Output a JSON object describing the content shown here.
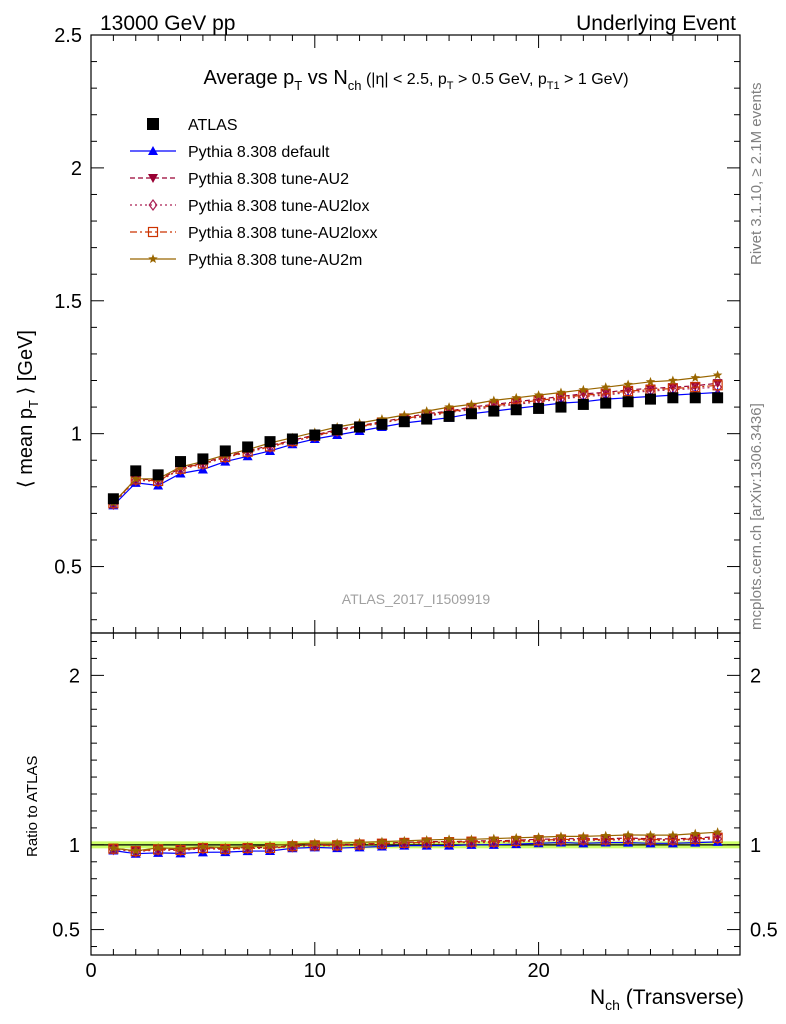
{
  "header": {
    "left": "13000 GeV pp",
    "right": "Underlying Event"
  },
  "side_labels": {
    "rivet": "Rivet 3.1.10, ≥ 2.1M events",
    "mcplots": "mcplots.cern.ch [arXiv:1306.3436]"
  },
  "chart_data": {
    "type": "scatter",
    "title": {
      "main": "Average p",
      "main_sub": "T",
      "vs": " vs N",
      "vs_sub": "ch",
      "cuts_a": " (|η| < 2.5, p",
      "cuts_a_sub": "T",
      "cuts_b": " > 0.5 GeV, p",
      "cuts_b_sub": "T1",
      "cuts_c": " > 1 GeV)"
    },
    "watermark": "ATLAS_2017_I1509919",
    "ylabel": {
      "open": "⟨ mean p",
      "sub": "T",
      "close": " ⟩ [GeV]"
    },
    "ratio_ylabel": "Ratio to ATLAS",
    "xlabel": {
      "main": "N",
      "sub": "ch",
      "rest": " (Transverse)"
    },
    "xlim": [
      0,
      29
    ],
    "ylim": [
      0.25,
      2.5
    ],
    "ratio_ylim": [
      0.35,
      2.25
    ],
    "x_ticks": [
      "0",
      "10",
      "20"
    ],
    "y_ticks": [
      "0.5",
      "1",
      "1.5",
      "2",
      "2.5"
    ],
    "ratio_ticks": [
      "0.5",
      "1",
      "2"
    ],
    "x": [
      1,
      2,
      3,
      4,
      5,
      6,
      7,
      8,
      9,
      10,
      11,
      12,
      13,
      14,
      15,
      16,
      17,
      18,
      19,
      20,
      21,
      22,
      23,
      24,
      25,
      26,
      27,
      28
    ],
    "legend_position": "top-left",
    "reference_band_color": "#ccff66",
    "series": [
      {
        "name": "ATLAS",
        "color": "#000000",
        "marker": "square",
        "line": "none",
        "values": [
          0.755,
          0.86,
          0.845,
          0.895,
          0.905,
          0.935,
          0.95,
          0.97,
          0.98,
          0.995,
          1.015,
          1.025,
          1.035,
          1.045,
          1.055,
          1.065,
          1.075,
          1.085,
          1.09,
          1.095,
          1.1,
          1.11,
          1.115,
          1.12,
          1.13,
          1.135,
          1.135,
          1.135
        ]
      },
      {
        "name": "Pythia 8.308 default",
        "color": "#0000ff",
        "marker": "triangle-up",
        "line": "solid",
        "values": [
          0.73,
          0.815,
          0.805,
          0.85,
          0.865,
          0.895,
          0.915,
          0.935,
          0.96,
          0.98,
          0.995,
          1.01,
          1.025,
          1.04,
          1.05,
          1.06,
          1.075,
          1.085,
          1.095,
          1.105,
          1.115,
          1.12,
          1.13,
          1.135,
          1.14,
          1.145,
          1.15,
          1.155
        ]
      },
      {
        "name": "Pythia 8.308 tune-AU2",
        "color": "#990033",
        "marker": "triangle-down",
        "line": "dashed",
        "values": [
          0.74,
          0.83,
          0.825,
          0.87,
          0.89,
          0.915,
          0.935,
          0.955,
          0.975,
          0.995,
          1.015,
          1.03,
          1.045,
          1.06,
          1.075,
          1.085,
          1.1,
          1.11,
          1.12,
          1.13,
          1.14,
          1.15,
          1.155,
          1.165,
          1.17,
          1.175,
          1.18,
          1.19
        ]
      },
      {
        "name": "Pythia 8.308 tune-AU2lox",
        "color": "#aa2255",
        "marker": "diamond-open",
        "line": "dotted",
        "values": [
          0.735,
          0.825,
          0.82,
          0.865,
          0.885,
          0.91,
          0.93,
          0.95,
          0.97,
          0.99,
          1.01,
          1.025,
          1.04,
          1.055,
          1.065,
          1.08,
          1.09,
          1.1,
          1.11,
          1.12,
          1.13,
          1.14,
          1.145,
          1.155,
          1.16,
          1.165,
          1.17,
          1.175
        ]
      },
      {
        "name": "Pythia 8.308 tune-AU2loxx",
        "color": "#cc3300",
        "marker": "square-open",
        "line": "dashdot",
        "values": [
          0.738,
          0.828,
          0.822,
          0.868,
          0.888,
          0.912,
          0.932,
          0.952,
          0.972,
          0.992,
          1.012,
          1.027,
          1.042,
          1.057,
          1.07,
          1.082,
          1.095,
          1.105,
          1.115,
          1.125,
          1.135,
          1.145,
          1.15,
          1.16,
          1.165,
          1.17,
          1.175,
          1.182
        ]
      },
      {
        "name": "Pythia 8.308 tune-AU2m",
        "color": "#996600",
        "marker": "star",
        "line": "solid",
        "values": [
          0.74,
          0.83,
          0.83,
          0.875,
          0.895,
          0.92,
          0.94,
          0.965,
          0.985,
          1.005,
          1.025,
          1.04,
          1.055,
          1.07,
          1.085,
          1.1,
          1.11,
          1.125,
          1.135,
          1.145,
          1.155,
          1.165,
          1.175,
          1.185,
          1.195,
          1.2,
          1.21,
          1.22
        ]
      }
    ]
  }
}
